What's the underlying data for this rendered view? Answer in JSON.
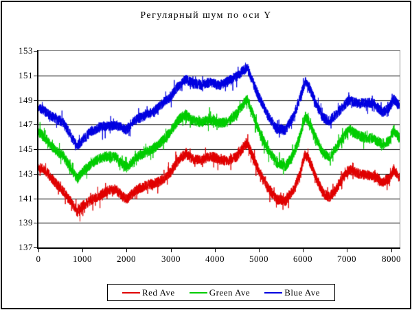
{
  "chart_data": {
    "type": "line",
    "title": "Регулярный шум по оси Y",
    "xlabel": "",
    "ylabel": "",
    "xlim": [
      0,
      8192
    ],
    "ylim": [
      137,
      153
    ],
    "x_ticks": [
      0,
      1000,
      2000,
      3000,
      4000,
      5000,
      6000,
      7000,
      8000
    ],
    "y_ticks": [
      137,
      139,
      141,
      143,
      145,
      147,
      149,
      151,
      153
    ],
    "grid": {
      "horizontal": true,
      "vertical": false,
      "color": "#000000",
      "interval": 2
    },
    "legend": {
      "position": "bottom",
      "border": true
    },
    "noise": {
      "base_amplitude": 0.42,
      "spike_probability": 0.07,
      "spike_amplitude": 0.65,
      "step": 2
    },
    "series": [
      {
        "name": "Red Ave",
        "color": "#e00000",
        "seed": 1337,
        "trend_keypoints": [
          [
            0,
            143.3
          ],
          [
            150,
            143.1
          ],
          [
            350,
            142.4
          ],
          [
            550,
            141.7
          ],
          [
            750,
            140.6
          ],
          [
            880,
            139.9
          ],
          [
            1000,
            140.5
          ],
          [
            1200,
            141.1
          ],
          [
            1500,
            141.4
          ],
          [
            1750,
            141.6
          ],
          [
            2000,
            140.9
          ],
          [
            2200,
            141.5
          ],
          [
            2500,
            142.1
          ],
          [
            2750,
            142.6
          ],
          [
            3000,
            143.2
          ],
          [
            3200,
            144.2
          ],
          [
            3350,
            144.6
          ],
          [
            3500,
            144.2
          ],
          [
            3700,
            144.0
          ],
          [
            3900,
            144.2
          ],
          [
            4100,
            144.1
          ],
          [
            4300,
            144.2
          ],
          [
            4500,
            144.5
          ],
          [
            4650,
            145.2
          ],
          [
            4740,
            145.5
          ],
          [
            4850,
            144.6
          ],
          [
            5000,
            143.4
          ],
          [
            5200,
            141.9
          ],
          [
            5400,
            140.7
          ],
          [
            5600,
            140.6
          ],
          [
            5800,
            141.8
          ],
          [
            5950,
            143.3
          ],
          [
            6050,
            144.6
          ],
          [
            6150,
            144.0
          ],
          [
            6300,
            142.7
          ],
          [
            6450,
            141.6
          ],
          [
            6600,
            141.3
          ],
          [
            6750,
            141.9
          ],
          [
            6900,
            142.6
          ],
          [
            7050,
            143.2
          ],
          [
            7200,
            143.0
          ],
          [
            7400,
            142.9
          ],
          [
            7600,
            142.7
          ],
          [
            7800,
            142.2
          ],
          [
            7950,
            142.6
          ],
          [
            8060,
            143.5
          ],
          [
            8191,
            142.9
          ]
        ]
      },
      {
        "name": "Green Ave",
        "color": "#00cc00",
        "seed": 4242,
        "trend_keypoints": [
          [
            0,
            146.3
          ],
          [
            150,
            146.0
          ],
          [
            350,
            145.3
          ],
          [
            550,
            144.6
          ],
          [
            750,
            143.3
          ],
          [
            880,
            142.5
          ],
          [
            1000,
            143.1
          ],
          [
            1200,
            143.8
          ],
          [
            1500,
            144.2
          ],
          [
            1750,
            144.4
          ],
          [
            2000,
            143.7
          ],
          [
            2200,
            144.3
          ],
          [
            2500,
            144.9
          ],
          [
            2750,
            145.5
          ],
          [
            3000,
            146.2
          ],
          [
            3200,
            147.3
          ],
          [
            3350,
            147.8
          ],
          [
            3500,
            147.4
          ],
          [
            3700,
            147.2
          ],
          [
            3900,
            147.4
          ],
          [
            4100,
            147.3
          ],
          [
            4300,
            147.4
          ],
          [
            4500,
            147.8
          ],
          [
            4650,
            148.5
          ],
          [
            4740,
            148.9
          ],
          [
            4850,
            147.9
          ],
          [
            5000,
            146.5
          ],
          [
            5200,
            144.9
          ],
          [
            5400,
            143.8
          ],
          [
            5600,
            143.7
          ],
          [
            5800,
            144.9
          ],
          [
            5950,
            146.4
          ],
          [
            6050,
            147.7
          ],
          [
            6150,
            147.1
          ],
          [
            6300,
            145.8
          ],
          [
            6450,
            144.7
          ],
          [
            6600,
            144.4
          ],
          [
            6750,
            145.0
          ],
          [
            6900,
            145.7
          ],
          [
            7050,
            146.5
          ],
          [
            7200,
            146.3
          ],
          [
            7400,
            146.1
          ],
          [
            7600,
            145.9
          ],
          [
            7800,
            145.4
          ],
          [
            7950,
            145.8
          ],
          [
            8060,
            146.7
          ],
          [
            8191,
            145.9
          ]
        ]
      },
      {
        "name": "Blue Ave",
        "color": "#0000e0",
        "seed": 9001,
        "trend_keypoints": [
          [
            0,
            148.5
          ],
          [
            150,
            148.2
          ],
          [
            350,
            147.6
          ],
          [
            550,
            147.0
          ],
          [
            750,
            145.8
          ],
          [
            880,
            145.2
          ],
          [
            1000,
            145.8
          ],
          [
            1200,
            146.5
          ],
          [
            1500,
            146.9
          ],
          [
            1750,
            147.2
          ],
          [
            2000,
            146.6
          ],
          [
            2200,
            147.2
          ],
          [
            2500,
            147.8
          ],
          [
            2750,
            148.4
          ],
          [
            3000,
            149.2
          ],
          [
            3200,
            150.4
          ],
          [
            3350,
            150.9
          ],
          [
            3500,
            150.5
          ],
          [
            3700,
            150.2
          ],
          [
            3900,
            150.4
          ],
          [
            4100,
            150.2
          ],
          [
            4300,
            150.4
          ],
          [
            4500,
            150.7
          ],
          [
            4650,
            151.3
          ],
          [
            4740,
            151.6
          ],
          [
            4850,
            150.7
          ],
          [
            5000,
            149.4
          ],
          [
            5200,
            147.8
          ],
          [
            5400,
            146.7
          ],
          [
            5600,
            146.7
          ],
          [
            5800,
            147.8
          ],
          [
            5950,
            149.2
          ],
          [
            6050,
            150.3
          ],
          [
            6150,
            149.8
          ],
          [
            6300,
            148.6
          ],
          [
            6450,
            147.6
          ],
          [
            6600,
            147.3
          ],
          [
            6750,
            147.8
          ],
          [
            6900,
            148.4
          ],
          [
            7050,
            149.2
          ],
          [
            7200,
            149.0
          ],
          [
            7400,
            148.8
          ],
          [
            7600,
            148.6
          ],
          [
            7800,
            147.9
          ],
          [
            7950,
            148.3
          ],
          [
            8060,
            149.0
          ],
          [
            8191,
            148.4
          ]
        ]
      }
    ]
  },
  "colors": {
    "background": "#ffffff",
    "outer_border": "#000000",
    "axis": "#000000",
    "frame_light": "#8c8c8c",
    "gridline": "#000000"
  }
}
